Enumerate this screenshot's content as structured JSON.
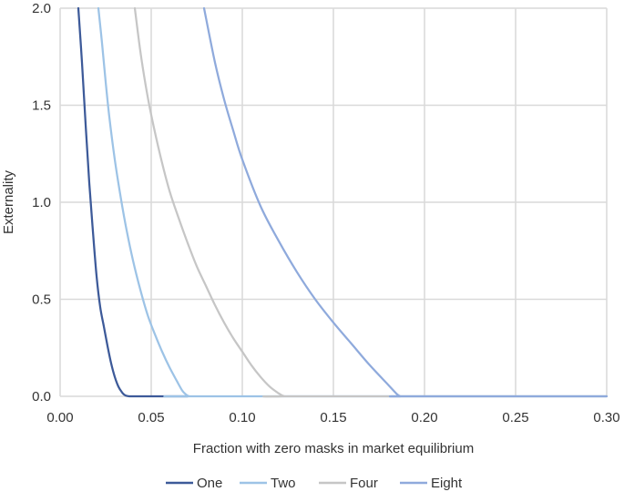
{
  "chart_data": {
    "type": "line",
    "xlabel": "Fraction with zero masks in market equilibrium",
    "ylabel": "Externality",
    "xlim": [
      0,
      0.3
    ],
    "ylim": [
      0,
      2.0
    ],
    "x_ticks": [
      "0.00",
      "0.05",
      "0.10",
      "0.15",
      "0.20",
      "0.25",
      "0.30"
    ],
    "y_ticks": [
      "0.0",
      "0.5",
      "1.0",
      "1.5",
      "2.0"
    ],
    "grid": true,
    "legend_position": "bottom",
    "series": [
      {
        "name": "One",
        "color": "#3d5a99",
        "x": [
          0.01,
          0.012,
          0.014,
          0.016,
          0.018,
          0.02,
          0.022,
          0.024,
          0.026,
          0.028,
          0.03,
          0.032,
          0.034,
          0.035,
          0.036,
          0.038,
          0.04,
          0.05,
          0.07
        ],
        "y": [
          2.0,
          1.72,
          1.4,
          1.1,
          0.85,
          0.62,
          0.46,
          0.36,
          0.26,
          0.17,
          0.1,
          0.05,
          0.02,
          0.01,
          0.004,
          0.0,
          0.0,
          0.0,
          0.0
        ]
      },
      {
        "name": "Two",
        "color": "#9dc3e6",
        "x": [
          0.021,
          0.023,
          0.025,
          0.027,
          0.03,
          0.033,
          0.036,
          0.04,
          0.044,
          0.048,
          0.052,
          0.056,
          0.06,
          0.064,
          0.067,
          0.069,
          0.071,
          0.075,
          0.3
        ],
        "y": [
          2.0,
          1.82,
          1.62,
          1.44,
          1.22,
          1.04,
          0.88,
          0.7,
          0.55,
          0.42,
          0.32,
          0.23,
          0.15,
          0.08,
          0.03,
          0.01,
          0.0,
          0.0,
          0.0
        ]
      },
      {
        "name": "Four",
        "color": "#c6c6c6",
        "x": [
          0.041,
          0.044,
          0.047,
          0.05,
          0.055,
          0.06,
          0.065,
          0.07,
          0.075,
          0.08,
          0.085,
          0.09,
          0.095,
          0.1,
          0.105,
          0.11,
          0.115,
          0.12,
          0.123,
          0.125,
          0.3
        ],
        "y": [
          2.0,
          1.78,
          1.6,
          1.45,
          1.24,
          1.06,
          0.92,
          0.79,
          0.67,
          0.57,
          0.47,
          0.38,
          0.3,
          0.23,
          0.16,
          0.1,
          0.05,
          0.015,
          0.0,
          0.0,
          0.0
        ]
      },
      {
        "name": "Eight",
        "color": "#8faadc",
        "x": [
          0.079,
          0.085,
          0.09,
          0.095,
          0.1,
          0.11,
          0.12,
          0.13,
          0.14,
          0.15,
          0.16,
          0.17,
          0.18,
          0.185,
          0.187,
          0.19,
          0.3
        ],
        "y": [
          2.0,
          1.72,
          1.53,
          1.37,
          1.22,
          0.98,
          0.8,
          0.64,
          0.5,
          0.38,
          0.27,
          0.16,
          0.06,
          0.01,
          0.0,
          0.0,
          0.0
        ]
      }
    ]
  }
}
